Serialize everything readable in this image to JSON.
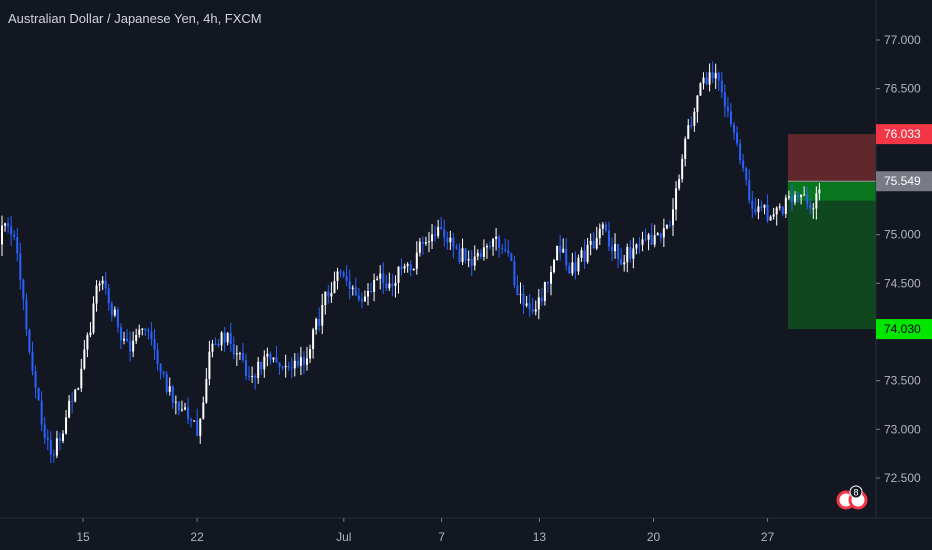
{
  "chart_data": {
    "type": "candlestick",
    "title": "Australian Dollar / Japanese Yen, 4h, FXCM",
    "xlabel": "",
    "ylabel": "",
    "ylim": [
      72.2,
      77.25
    ],
    "y_ticks": [
      "77.000",
      "76.500",
      "76.000",
      "75.500",
      "75.000",
      "74.500",
      "74.000",
      "73.500",
      "73.000",
      "72.500"
    ],
    "x_ticks": [
      "15",
      "22",
      "Jul",
      "7",
      "13",
      "20",
      "27"
    ],
    "grid": false,
    "price_scale_side": "right",
    "colors": {
      "background": "#131722",
      "up": "#ffffff",
      "down": "#2962ff",
      "stop_zone": "#6e2b2d",
      "target_zone": "#0f4d1e",
      "entry_zone": "#0a7a1f",
      "stop_tag": "#f23645",
      "target_tag": "#00e600",
      "entry_tag": "#787b86"
    },
    "position": {
      "type": "short",
      "entry": 75.549,
      "stop": 76.033,
      "target": 74.03,
      "entry_label": "75.549",
      "stop_label": "76.033",
      "target_label": "74.030"
    },
    "anchors": [
      {
        "x": "Jun 9",
        "y": 74.9
      },
      {
        "x": "Jun 10",
        "y": 75.3
      },
      {
        "x": "Jun 11",
        "y": 74.7
      },
      {
        "x": "Jun 12",
        "y": 73.3
      },
      {
        "x": "Jun 13",
        "y": 72.7
      },
      {
        "x": "Jun 14",
        "y": 73.2
      },
      {
        "x": "Jun 15",
        "y": 73.7
      },
      {
        "x": "Jun 16",
        "y": 74.6
      },
      {
        "x": "Jun 17",
        "y": 74.1
      },
      {
        "x": "Jun 18",
        "y": 73.8
      },
      {
        "x": "Jun 19",
        "y": 74.1
      },
      {
        "x": "Jun 20",
        "y": 73.5
      },
      {
        "x": "Jun 21",
        "y": 73.2
      },
      {
        "x": "Jun 22",
        "y": 73.0
      },
      {
        "x": "Jun 23",
        "y": 74.0
      },
      {
        "x": "Jun 24",
        "y": 73.9
      },
      {
        "x": "Jun 25",
        "y": 73.5
      },
      {
        "x": "Jun 26",
        "y": 73.7
      },
      {
        "x": "Jun 27",
        "y": 73.6
      },
      {
        "x": "Jun 28",
        "y": 73.6
      },
      {
        "x": "Jun 29",
        "y": 73.9
      },
      {
        "x": "Jun 30",
        "y": 74.4
      },
      {
        "x": "Jul 1",
        "y": 74.6
      },
      {
        "x": "Jul 2",
        "y": 74.35
      },
      {
        "x": "Jul 3",
        "y": 74.5
      },
      {
        "x": "Jul 4",
        "y": 74.55
      },
      {
        "x": "Jul 5",
        "y": 74.7
      },
      {
        "x": "Jul 6",
        "y": 74.9
      },
      {
        "x": "Jul 7",
        "y": 75.05
      },
      {
        "x": "Jul 8",
        "y": 74.8
      },
      {
        "x": "Jul 9",
        "y": 74.75
      },
      {
        "x": "Jul 10",
        "y": 74.95
      },
      {
        "x": "Jul 11",
        "y": 74.7
      },
      {
        "x": "Jul 12",
        "y": 74.3
      },
      {
        "x": "Jul 13",
        "y": 74.3
      },
      {
        "x": "Jul 14",
        "y": 74.9
      },
      {
        "x": "Jul 15",
        "y": 74.65
      },
      {
        "x": "Jul 16",
        "y": 74.85
      },
      {
        "x": "Jul 17",
        "y": 75.0
      },
      {
        "x": "Jul 18",
        "y": 74.8
      },
      {
        "x": "Jul 19",
        "y": 74.85
      },
      {
        "x": "Jul 20",
        "y": 74.9
      },
      {
        "x": "Jul 21",
        "y": 75.2
      },
      {
        "x": "Jul 22",
        "y": 76.0
      },
      {
        "x": "Jul 23",
        "y": 76.6
      },
      {
        "x": "Jul 24",
        "y": 76.55
      },
      {
        "x": "Jul 25",
        "y": 75.9
      },
      {
        "x": "Jul 26",
        "y": 75.3
      },
      {
        "x": "Jul 27",
        "y": 75.15
      },
      {
        "x": "Jul 28",
        "y": 75.3
      },
      {
        "x": "Jul 29",
        "y": 75.3
      },
      {
        "x": "Jul 30",
        "y": 75.35
      }
    ],
    "badge_count": "8"
  }
}
